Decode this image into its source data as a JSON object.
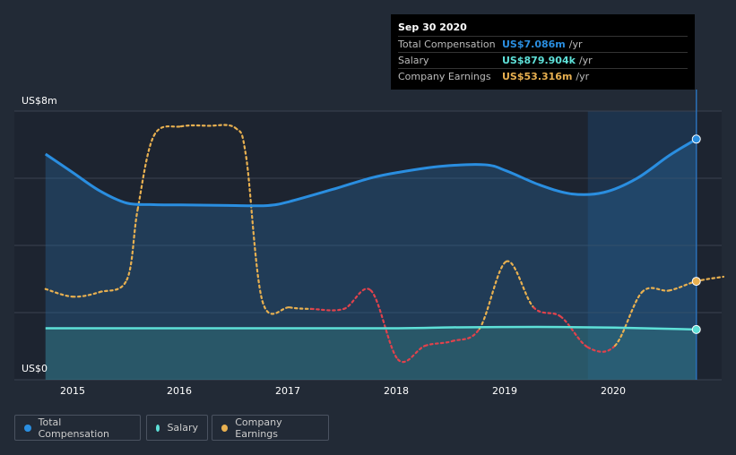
{
  "chart_data": {
    "type": "line",
    "y_unit_labels": [
      "US$8m",
      "US$0"
    ],
    "x_ticks": [
      "2015",
      "2016",
      "2017",
      "2018",
      "2019",
      "2020"
    ],
    "ylim": [
      0,
      8
    ],
    "grid": true,
    "legend_position": "bottom-left",
    "series": [
      {
        "name": "Total Compensation",
        "color": "#2a8ee0",
        "x": [
          2014.75,
          2015.0,
          2015.25,
          2015.5,
          2015.75,
          2016.0,
          2016.5,
          2016.8,
          2017.0,
          2017.4,
          2017.75,
          2018.0,
          2018.4,
          2018.8,
          2019.0,
          2019.3,
          2019.6,
          2019.9,
          2020.2,
          2020.5,
          2020.75
        ],
        "values": [
          6.6,
          6.0,
          5.4,
          5.0,
          4.95,
          4.94,
          4.92,
          4.92,
          5.05,
          5.45,
          5.82,
          6.0,
          6.2,
          6.25,
          6.05,
          5.6,
          5.3,
          5.35,
          5.8,
          6.55,
          7.086
        ]
      },
      {
        "name": "Salary",
        "color": "#5ee0d8",
        "x": [
          2014.75,
          2016.0,
          2017.0,
          2018.0,
          2018.5,
          2019.0,
          2019.5,
          2020.0,
          2020.5,
          2020.75
        ],
        "values": [
          0.92,
          0.92,
          0.92,
          0.92,
          0.95,
          0.96,
          0.96,
          0.94,
          0.9,
          0.88
        ]
      },
      {
        "name": "Company Earnings",
        "color": "#e8b050",
        "negative_color": "#e0424c",
        "x": [
          2014.75,
          2015.0,
          2015.25,
          2015.5,
          2015.6,
          2015.75,
          2016.0,
          2016.25,
          2016.5,
          2016.6,
          2016.75,
          2017.0,
          2017.2,
          2017.5,
          2017.75,
          2018.0,
          2018.25,
          2018.5,
          2018.75,
          2019.0,
          2019.25,
          2019.5,
          2019.75,
          2020.0,
          2020.25,
          2020.5,
          2020.75,
          2021.0
        ],
        "values": [
          2.2,
          1.95,
          2.1,
          2.5,
          4.8,
          7.2,
          7.5,
          7.52,
          7.45,
          6.5,
          1.8,
          1.6,
          1.55,
          1.55,
          2.15,
          -0.1,
          0.35,
          0.5,
          0.9,
          3.1,
          1.6,
          1.3,
          0.3,
          0.35,
          2.1,
          2.15,
          2.45,
          2.6
        ]
      }
    ],
    "highlight_region": [
      2019.75,
      2020.75
    ]
  },
  "tooltip": {
    "date": "Sep 30 2020",
    "rows": [
      {
        "label": "Total Compensation",
        "value": "US$7.086m",
        "unit": "/yr",
        "color": "#2a8ee0"
      },
      {
        "label": "Salary",
        "value": "US$879.904k",
        "unit": "/yr",
        "color": "#5ee0d8"
      },
      {
        "label": "Company Earnings",
        "value": "US$53.316m",
        "unit": "/yr",
        "color": "#e8b050"
      }
    ]
  },
  "legend": [
    {
      "label": "Total Compensation",
      "color": "#2a8ee0"
    },
    {
      "label": "Salary",
      "color": "#5ee0d8"
    },
    {
      "label": "Company Earnings",
      "color": "#e8b050"
    }
  ]
}
